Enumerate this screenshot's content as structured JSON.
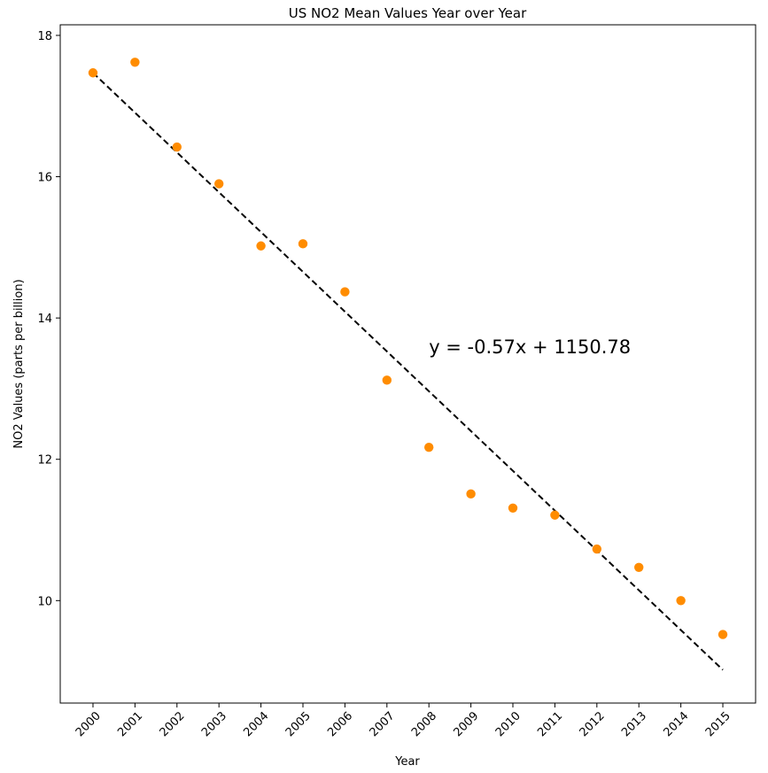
{
  "chart_data": {
    "type": "scatter",
    "title": "US NO2 Mean Values Year over Year",
    "xlabel": "Year",
    "ylabel": "NO2 Values (parts per billion)",
    "categories": [
      "2000",
      "2001",
      "2002",
      "2003",
      "2004",
      "2005",
      "2006",
      "2007",
      "2008",
      "2009",
      "2010",
      "2011",
      "2012",
      "2013",
      "2014",
      "2015"
    ],
    "x": [
      2000,
      2001,
      2002,
      2003,
      2004,
      2005,
      2006,
      2007,
      2008,
      2009,
      2010,
      2011,
      2012,
      2013,
      2014,
      2015
    ],
    "y": [
      17.47,
      17.62,
      16.42,
      15.9,
      15.02,
      15.05,
      14.37,
      13.12,
      12.17,
      11.51,
      11.31,
      11.21,
      10.73,
      10.47,
      10.0,
      9.52
    ],
    "xlim": [
      1999.22,
      2015.78
    ],
    "ylim": [
      8.55,
      18.15
    ],
    "yticks": [
      10,
      12,
      14,
      16,
      18
    ],
    "point_color": "#ff8c00",
    "trendline": {
      "slope": -0.57,
      "intercept": 1150.78,
      "x_range": [
        2000,
        2015
      ],
      "y_range": [
        17.47,
        9.02
      ],
      "style": "dashed",
      "color": "#000000"
    },
    "annotation": {
      "text": "y = -0.57x + 1150.78",
      "x": 2008,
      "y": 13.5
    },
    "grid": false,
    "legend": "none"
  }
}
